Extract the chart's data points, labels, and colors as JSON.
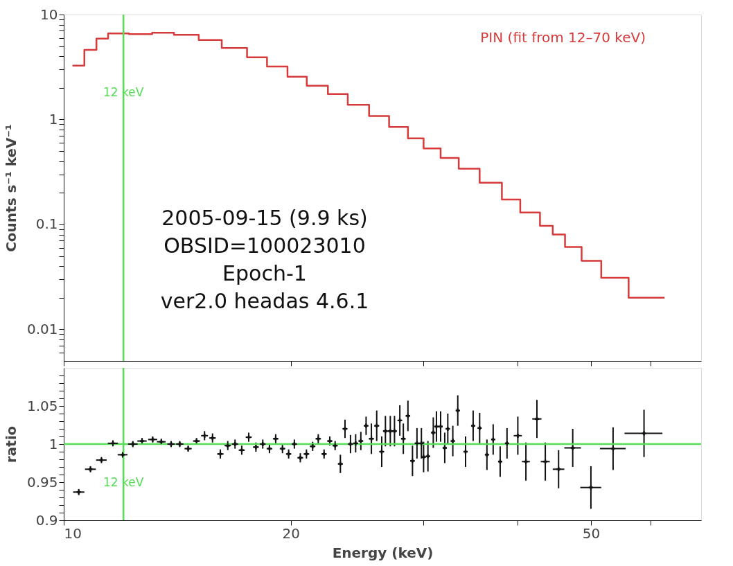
{
  "chart_data": [
    {
      "type": "step",
      "ylabel": "Counts s⁻¹ keV⁻¹",
      "log": "xy",
      "legend": false,
      "grid": false,
      "tick_labels": "y",
      "xlim": [
        10,
        70
      ],
      "xticks": [
        {
          "value": 10,
          "label": null
        },
        {
          "value": 20,
          "label": null
        },
        {
          "value": 30,
          "label": null
        },
        {
          "value": 40,
          "label": null
        },
        {
          "value": 50,
          "label": null
        },
        {
          "value": 60,
          "label": null
        }
      ],
      "ylim": [
        0.005,
        10
      ],
      "yticks": [
        {
          "value": 0.006,
          "label": null
        },
        {
          "value": 0.007,
          "label": null
        },
        {
          "value": 0.008,
          "label": null
        },
        {
          "value": 0.009,
          "label": null
        },
        0.01,
        {
          "value": 0.02,
          "label": null
        },
        {
          "value": 0.03,
          "label": null
        },
        {
          "value": 0.04,
          "label": null
        },
        {
          "value": 0.05,
          "label": null
        },
        {
          "value": 0.06,
          "label": null
        },
        {
          "value": 0.07,
          "label": null
        },
        {
          "value": 0.08,
          "label": null
        },
        {
          "value": 0.09,
          "label": null
        },
        0.1,
        {
          "value": 0.2,
          "label": null
        },
        {
          "value": 0.3,
          "label": null
        },
        {
          "value": 0.4,
          "label": null
        },
        {
          "value": 0.5,
          "label": null
        },
        {
          "value": 0.6,
          "label": null
        },
        {
          "value": 0.7,
          "label": null
        },
        {
          "value": 0.8,
          "label": null
        },
        {
          "value": 0.9,
          "label": null
        },
        1,
        {
          "value": 2,
          "label": null
        },
        {
          "value": 3,
          "label": null
        },
        {
          "value": 4,
          "label": null
        },
        {
          "value": 5,
          "label": null
        },
        {
          "value": 6,
          "label": null
        },
        {
          "value": 7,
          "label": null
        },
        {
          "value": 8,
          "label": null
        },
        {
          "value": 9,
          "label": null
        },
        10
      ],
      "series": [
        {
          "name": "PIN (fit from 12–70 keV)",
          "color": "#d63a3a",
          "x": [
            10.27,
            10.65,
            11.05,
            11.45,
            12.2,
            13.1,
            14.0,
            15.1,
            16.2,
            17.5,
            18.6,
            19.8,
            21.0,
            22.4,
            23.8,
            25.4,
            27.0,
            28.6,
            30.0,
            31.6,
            33.4,
            35.6,
            38.1,
            40.3,
            42.8,
            44.5,
            46.2,
            48.6,
            51.6,
            56.1,
            62.6
          ],
          "values": [
            3.26,
            4.6,
            5.9,
            6.6,
            6.5,
            6.7,
            6.4,
            5.71,
            4.8,
            3.91,
            3.2,
            2.56,
            2.1,
            1.75,
            1.38,
            1.08,
            0.85,
            0.66,
            0.53,
            0.43,
            0.34,
            0.25,
            0.173,
            0.13,
            0.097,
            0.08,
            0.061,
            0.045,
            0.031,
            0.02,
            0.02
          ]
        }
      ],
      "ref_lines": [
        {
          "axis": "x",
          "value": 12,
          "label": "12 keV",
          "color": "#55dd55"
        }
      ],
      "annotations": [
        "2005-09-15 (9.9 ks)",
        "OBSID=100023010",
        "Epoch-1",
        "ver2.0 headas 4.6.1"
      ]
    },
    {
      "type": "scatter",
      "xlabel": "Energy (keV)",
      "ylabel": "ratio",
      "log": "x",
      "legend": false,
      "grid": false,
      "marker": "cross",
      "xlim": [
        10,
        70
      ],
      "xticks": [
        10,
        20,
        {
          "value": 30,
          "label": null
        },
        {
          "value": 40,
          "label": null
        },
        50,
        {
          "value": 60,
          "label": null
        }
      ],
      "ylim": [
        0.9,
        1.1
      ],
      "yticks": [
        0.9,
        {
          "value": 0.91,
          "label": null
        },
        {
          "value": 0.92,
          "label": null
        },
        {
          "value": 0.93,
          "label": null
        },
        {
          "value": 0.94,
          "label": null
        },
        0.95,
        {
          "value": 0.96,
          "label": null
        },
        {
          "value": 0.97,
          "label": null
        },
        {
          "value": 0.98,
          "label": null
        },
        {
          "value": 0.99,
          "label": null
        },
        1,
        {
          "value": 1.01,
          "label": null
        },
        {
          "value": 1.02,
          "label": null
        },
        {
          "value": 1.03,
          "label": null
        },
        {
          "value": 1.04,
          "label": null
        },
        1.05,
        {
          "value": 1.06,
          "label": null
        },
        {
          "value": 1.07,
          "label": null
        },
        {
          "value": 1.08,
          "label": null
        },
        {
          "value": 1.09,
          "label": null
        }
      ],
      "series": [
        {
          "color": "#111111",
          "x": [
            10.47,
            10.85,
            11.22,
            11.62,
            11.97,
            12.35,
            12.7,
            13.12,
            13.47,
            13.88,
            14.25,
            14.62,
            15.0,
            15.37,
            15.75,
            16.13,
            16.5,
            16.87,
            17.22,
            17.59,
            17.98,
            18.36,
            18.74,
            19.1,
            19.5,
            19.87,
            20.22,
            20.59,
            20.98,
            21.38,
            21.75,
            22.14,
            22.53,
            22.9,
            23.27,
            23.6,
            24.0,
            24.38,
            24.77,
            25.17,
            25.58,
            26.0,
            26.4,
            26.7,
            27.1,
            27.45,
            27.9,
            28.2,
            28.6,
            29.0,
            29.4,
            29.8,
            30.0,
            30.4,
            30.9,
            31.2,
            31.6,
            32.0,
            32.3,
            32.8,
            33.3,
            34.1,
            34.9,
            35.6,
            36.4,
            37.1,
            37.9,
            38.7,
            40.0,
            41.0,
            42.4,
            43.5,
            45.3,
            47.3,
            50.0,
            53.5,
            58.8
          ],
          "values": [
            0.937,
            0.967,
            0.979,
            1.001,
            0.986,
            1.0,
            1.004,
            1.006,
            1.003,
            1.0,
            1.0,
            0.994,
            1.004,
            1.011,
            1.008,
            0.987,
            0.998,
            1.0,
            0.992,
            1.009,
            0.996,
            1.0,
            0.994,
            1.007,
            0.994,
            0.987,
            1.0,
            0.982,
            0.987,
            0.997,
            1.007,
            0.987,
            1.004,
            0.998,
            0.974,
            1.02,
            1.0,
            1.001,
            1.004,
            1.024,
            1.007,
            1.024,
            0.99,
            1.017,
            1.017,
            1.017,
            1.031,
            1.007,
            1.037,
            0.978,
            1.001,
            1.001,
            0.983,
            0.984,
            1.015,
            1.023,
            1.023,
            0.995,
            1.02,
            1.004,
            1.044,
            0.99,
            1.024,
            1.021,
            0.986,
            1.006,
            0.977,
            1.001,
            1.011,
            0.977,
            1.033,
            0.977,
            0.967,
            0.995,
            0.943,
            0.994,
            1.014
          ],
          "errors": [
            0.004,
            0.004,
            0.004,
            0.004,
            0.004,
            0.004,
            0.004,
            0.004,
            0.004,
            0.004,
            0.004,
            0.004,
            0.004,
            0.006,
            0.006,
            0.006,
            0.006,
            0.006,
            0.006,
            0.006,
            0.006,
            0.006,
            0.006,
            0.006,
            0.006,
            0.006,
            0.006,
            0.006,
            0.006,
            0.006,
            0.006,
            0.006,
            0.006,
            0.006,
            0.012,
            0.012,
            0.012,
            0.012,
            0.012,
            0.012,
            0.02,
            0.02,
            0.02,
            0.02,
            0.02,
            0.02,
            0.02,
            0.02,
            0.02,
            0.02,
            0.02,
            0.02,
            0.02,
            0.02,
            0.02,
            0.02,
            0.02,
            0.02,
            0.02,
            0.02,
            0.02,
            0.02,
            0.02,
            0.02,
            0.02,
            0.02,
            0.02,
            0.02,
            0.025,
            0.025,
            0.025,
            0.025,
            0.025,
            0.025,
            0.028,
            0.028,
            0.031
          ],
          "xerrors": [
            0.18,
            0.18,
            0.18,
            0.18,
            0.18,
            0.18,
            0.18,
            0.18,
            0.18,
            0.16,
            0.16,
            0.16,
            0.16,
            0.16,
            0.16,
            0.16,
            0.16,
            0.16,
            0.16,
            0.16,
            0.16,
            0.16,
            0.16,
            0.16,
            0.16,
            0.16,
            0.16,
            0.18,
            0.18,
            0.18,
            0.18,
            0.18,
            0.18,
            0.18,
            0.18,
            0.18,
            0.18,
            0.18,
            0.18,
            0.18,
            0.2,
            0.2,
            0.2,
            0.2,
            0.2,
            0.2,
            0.2,
            0.2,
            0.2,
            0.2,
            0.2,
            0.2,
            0.2,
            0.2,
            0.2,
            0.2,
            0.2,
            0.2,
            0.2,
            0.2,
            0.2,
            0.2,
            0.2,
            0.2,
            0.2,
            0.2,
            0.2,
            0.2,
            0.5,
            0.5,
            0.6,
            0.6,
            0.8,
            1.2,
            1.6,
            2.1,
            3.4
          ]
        }
      ],
      "ref_lines": [
        {
          "axis": "x",
          "value": 12,
          "label": "12 keV",
          "color": "#55dd55"
        },
        {
          "axis": "y",
          "value": 1,
          "label": null,
          "color": "#55dd55"
        }
      ]
    }
  ]
}
